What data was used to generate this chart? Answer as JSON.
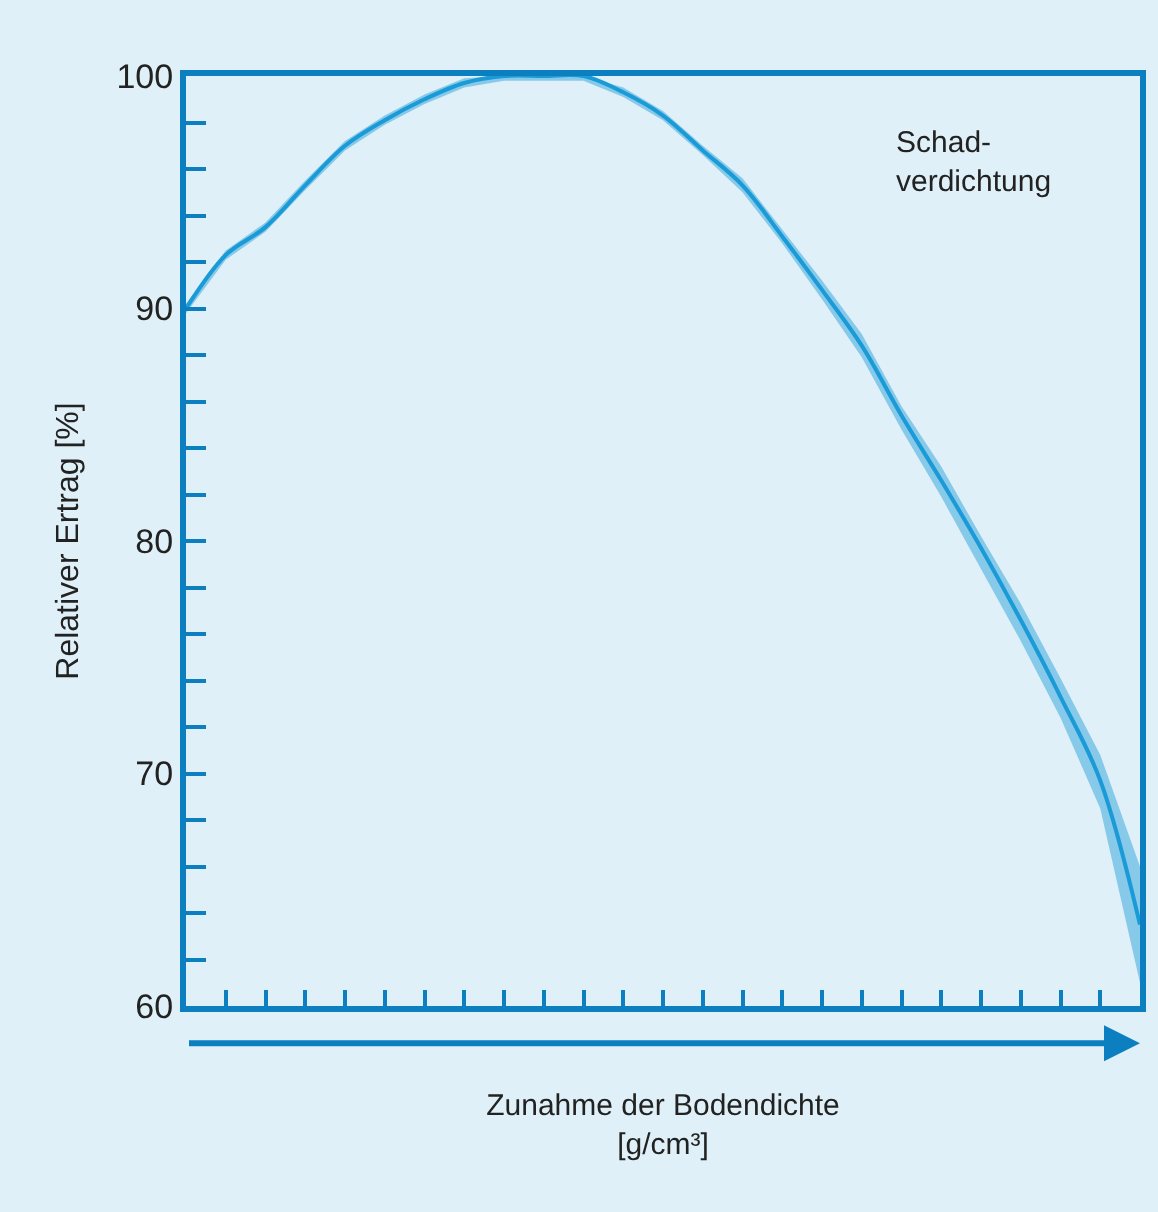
{
  "chart_data": {
    "type": "line",
    "xlabel": "Zunahme der Bodendichte\n[g/cm³]",
    "ylabel": "Relativer Ertrag [%]",
    "categories": [
      null,
      null,
      null,
      null,
      null,
      null,
      null,
      null,
      null,
      null,
      null,
      null,
      null,
      null,
      null,
      null,
      null,
      null,
      null,
      null,
      null,
      null,
      null,
      null,
      null
    ],
    "series": [
      {
        "color": "#1a9ad6",
        "values": [
          90.0,
          92.3,
          93.5,
          95.3,
          97.0,
          98.1,
          99.0,
          99.7,
          100,
          100,
          100,
          99.3,
          98.3,
          96.8,
          95.3,
          93.1,
          90.8,
          88.4,
          85.4,
          82.6,
          79.7,
          76.6,
          73.3,
          69.7,
          63.5
        ],
        "lower": [
          89.8,
          92.1,
          93.3,
          95.1,
          96.8,
          97.9,
          98.8,
          99.5,
          99.8,
          99.8,
          99.8,
          99.1,
          98.1,
          96.6,
          95.0,
          92.8,
          90.4,
          87.9,
          84.8,
          81.9,
          78.8,
          75.7,
          72.4,
          68.5,
          61.0
        ],
        "upper": [
          90.2,
          92.5,
          93.7,
          95.5,
          97.2,
          98.3,
          99.2,
          99.9,
          100,
          100,
          100,
          99.5,
          98.5,
          97.0,
          95.6,
          93.4,
          91.2,
          88.9,
          85.8,
          83.2,
          80.2,
          77.3,
          74.1,
          70.8,
          66.0
        ]
      }
    ],
    "ylim": [
      60,
      100
    ],
    "yticks": [
      60,
      70,
      80,
      90,
      100
    ],
    "grid": false,
    "marker": "none",
    "line_style": "solid",
    "annotations": [
      "Schad-\nverdichtung"
    ]
  }
}
